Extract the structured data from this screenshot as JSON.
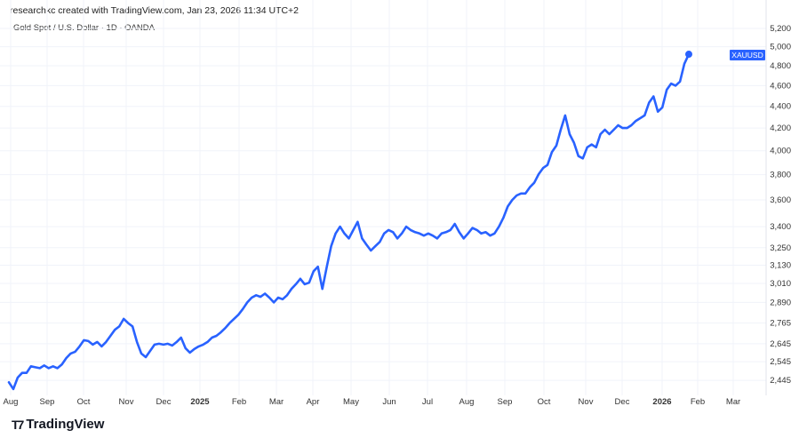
{
  "attribution": "researchkc created with TradingView.com, Jan 23, 2026 11:34 UTC+2",
  "symbol_title": "Gold Spot / U.S. Dollar · 1D · OANDA",
  "brand": "TradingView",
  "colors": {
    "line": "#2962ff",
    "grid": "#f0f3fa",
    "label_bg": "#2962ff"
  },
  "chart_data": {
    "type": "line",
    "title": "Gold Spot / U.S. Dollar · 1D · OANDA",
    "xlabel": "",
    "ylabel": "",
    "y_scale": "log",
    "ylim": [
      2400,
      5250
    ],
    "grid": true,
    "y_ticks": [
      5200,
      5000,
      4800,
      4600,
      4400,
      4200,
      4000,
      3800,
      3600,
      3400,
      3250,
      3130,
      3010,
      2890,
      2765,
      2645,
      2545,
      2445
    ],
    "y_tick_labels": [
      "5,200",
      "5,000",
      "4,800",
      "4,600",
      "4,400",
      "4,200",
      "4,000",
      "3,800",
      "3,600",
      "3,400",
      "3,250",
      "3,130",
      "3,010",
      "2,890",
      "2,765",
      "2,645",
      "2,545",
      "2,445"
    ],
    "x_tick_labels": [
      "Aug",
      "Sep",
      "Oct",
      "Nov",
      "Dec",
      "2025",
      "Feb",
      "Mar",
      "Apr",
      "May",
      "Jun",
      "Jul",
      "Aug",
      "Sep",
      "Oct",
      "Nov",
      "Dec",
      "2026",
      "Feb",
      "Mar"
    ],
    "x_range": "Aug 2024 – Jan 23, 2026",
    "series": [
      {
        "name": "XAUUSD",
        "last_label": "XAUUSD",
        "values": [
          2435,
          2400,
          2460,
          2485,
          2485,
          2520,
          2515,
          2510,
          2525,
          2510,
          2520,
          2510,
          2530,
          2565,
          2590,
          2600,
          2630,
          2665,
          2660,
          2640,
          2655,
          2630,
          2655,
          2690,
          2725,
          2745,
          2790,
          2765,
          2745,
          2655,
          2590,
          2570,
          2605,
          2640,
          2645,
          2640,
          2645,
          2635,
          2655,
          2680,
          2620,
          2595,
          2615,
          2630,
          2640,
          2655,
          2680,
          2690,
          2710,
          2735,
          2765,
          2790,
          2815,
          2850,
          2890,
          2920,
          2935,
          2925,
          2945,
          2920,
          2890,
          2920,
          2910,
          2935,
          2975,
          3005,
          3040,
          3005,
          3015,
          3090,
          3120,
          2975,
          3120,
          3260,
          3350,
          3400,
          3350,
          3315,
          3375,
          3435,
          3315,
          3270,
          3230,
          3260,
          3290,
          3350,
          3375,
          3360,
          3315,
          3350,
          3400,
          3375,
          3360,
          3350,
          3335,
          3350,
          3335,
          3315,
          3350,
          3360,
          3375,
          3420,
          3360,
          3315,
          3350,
          3390,
          3375,
          3350,
          3360,
          3335,
          3350,
          3400,
          3465,
          3550,
          3600,
          3635,
          3650,
          3650,
          3700,
          3735,
          3805,
          3855,
          3880,
          3990,
          4045,
          4185,
          4315,
          4145,
          4070,
          3955,
          3935,
          4030,
          4055,
          4030,
          4145,
          4185,
          4145,
          4185,
          4225,
          4200,
          4200,
          4225,
          4265,
          4290,
          4315,
          4435,
          4495,
          4350,
          4390,
          4560,
          4620,
          4600,
          4640,
          4820,
          4920
        ]
      }
    ]
  }
}
